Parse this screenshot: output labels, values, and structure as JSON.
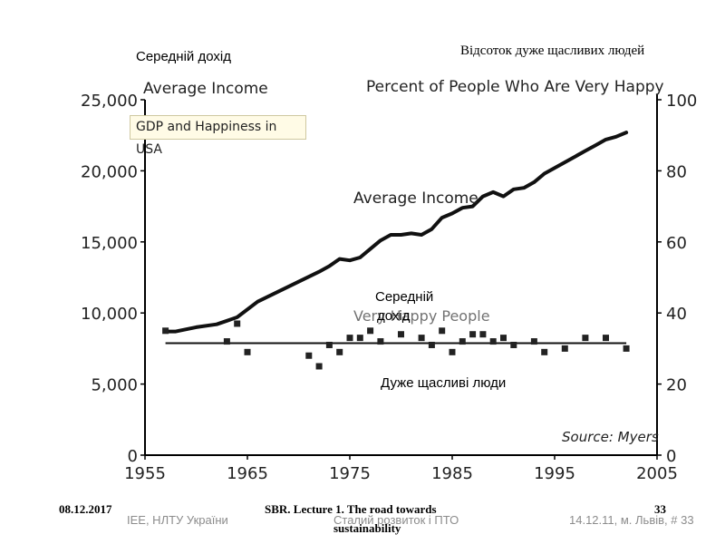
{
  "slide": {
    "label_left_ua": "Середній дохід",
    "label_right_ua": "Відсоток дуже щасливих людей",
    "label_mid_ua_line1": "Середній",
    "label_mid_ua_line2": "дохід",
    "label_bottom_ua": "Дуже щасливі люди"
  },
  "footer": {
    "date_left": "08.12.2017",
    "org_left": "IEE, НЛТУ України",
    "lecture_title_line1": "SBR. Lecture 1. The road towards",
    "lecture_title_line2": "sustainability",
    "course_grey": "Сталий розвиток і ПТО",
    "page_number": "33",
    "place_date_right": "14.12.11, м. Львів, # 33"
  },
  "chart_data": {
    "type": "line",
    "title_left_axis": "Average Income",
    "title_right_axis": "Percent of People Who Are Very Happy",
    "inset_label": "GDP and Happiness in USA",
    "source": "Source: Myers",
    "xlim": [
      1955,
      2005
    ],
    "x_ticks": [
      "1955",
      "1965",
      "1975",
      "1985",
      "1995",
      "2005"
    ],
    "y_left_lim": [
      0,
      25000
    ],
    "y_left_ticks": [
      "0",
      "5,000",
      "10,000",
      "15,000",
      "20,000",
      "25,000"
    ],
    "y_right_lim": [
      0,
      100
    ],
    "y_right_ticks": [
      "0",
      "20",
      "40",
      "60",
      "80",
      "100"
    ],
    "colors": {
      "line": "#111111",
      "markers": "#222222",
      "axes": "#000000"
    },
    "series": [
      {
        "name": "Average Income",
        "axis": "left",
        "style": "line",
        "x": [
          1957,
          1958,
          1960,
          1962,
          1964,
          1966,
          1968,
          1970,
          1972,
          1973,
          1974,
          1975,
          1976,
          1977,
          1978,
          1979,
          1980,
          1981,
          1982,
          1983,
          1984,
          1985,
          1986,
          1987,
          1988,
          1989,
          1990,
          1991,
          1992,
          1993,
          1994,
          1995,
          1996,
          1997,
          1998,
          1999,
          2000,
          2001,
          2002
        ],
        "y": [
          8700,
          8700,
          9000,
          9200,
          9700,
          10800,
          11500,
          12200,
          12900,
          13300,
          13800,
          13700,
          13900,
          14500,
          15100,
          15500,
          15500,
          15600,
          15500,
          15900,
          16700,
          17000,
          17400,
          17500,
          18200,
          18500,
          18200,
          18700,
          18800,
          19200,
          19800,
          20200,
          20600,
          21000,
          21400,
          21800,
          22200,
          22400,
          22700
        ]
      },
      {
        "name": "Very Happy People",
        "axis": "right",
        "style": "markers",
        "x": [
          1957,
          1963,
          1964,
          1965,
          1971,
          1972,
          1973,
          1974,
          1975,
          1976,
          1977,
          1978,
          1980,
          1982,
          1983,
          1984,
          1985,
          1986,
          1987,
          1988,
          1989,
          1990,
          1991,
          1993,
          1994,
          1996,
          1998,
          2000,
          2002
        ],
        "y": [
          35,
          32,
          37,
          29,
          28,
          25,
          31,
          29,
          33,
          33,
          35,
          32,
          34,
          33,
          31,
          35,
          29,
          32,
          34,
          34,
          32,
          33,
          31,
          32,
          29,
          30,
          33,
          33,
          30
        ]
      },
      {
        "name": "trend",
        "axis": "right",
        "style": "flat-line",
        "x": [
          1957,
          2002
        ],
        "y": [
          31.5,
          31.5
        ]
      }
    ]
  }
}
